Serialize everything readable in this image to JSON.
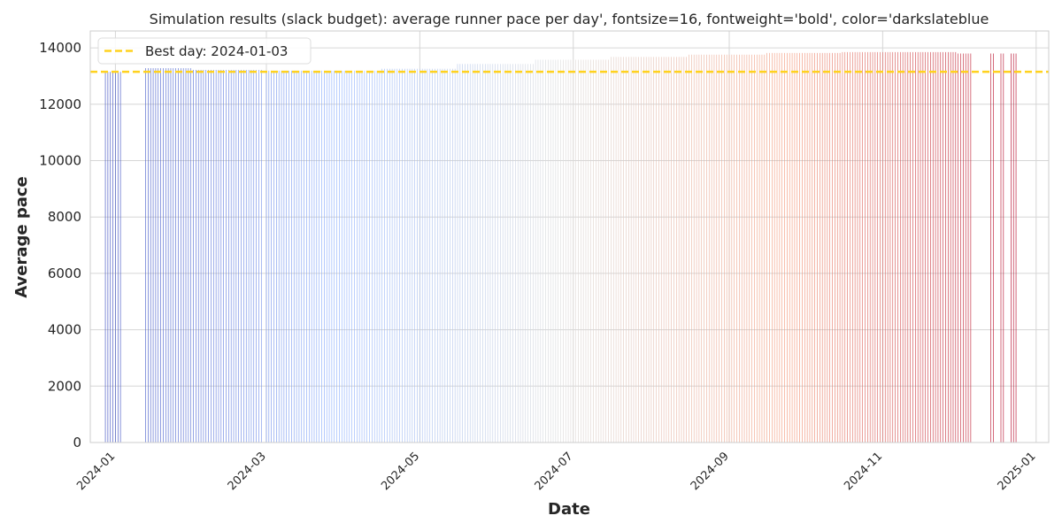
{
  "chart_data": {
    "type": "bar",
    "title": "Simulation results (slack budget): average runner pace per day', fontsize=16, fontweight='bold', color='darkslateblue",
    "xlabel": "Date",
    "ylabel": "Average pace",
    "ylim": [
      0,
      14600
    ],
    "xlim": [
      "2023-12-22",
      "2025-01-06"
    ],
    "yticks": [
      0,
      2000,
      4000,
      6000,
      8000,
      10000,
      12000,
      14000
    ],
    "xticks": [
      "2024-01",
      "2024-03",
      "2024-05",
      "2024-07",
      "2024-09",
      "2024-11",
      "2025-01"
    ],
    "grid": true,
    "legend_position": "top-left",
    "colormap": "coolwarm (blue for early dates to red for late dates)",
    "reference_line": {
      "label": "Best day: 2024-01-03",
      "value": 13150,
      "color": "#FFD21F",
      "style": "dashed"
    },
    "start_date": "2023-12-28",
    "end_date": "2024-12-24",
    "missing_dates": [
      [
        "2024-01-04",
        "2024-01-12"
      ],
      [
        "2024-12-07",
        "2024-12-13"
      ],
      [
        "2024-12-16",
        "2024-12-17"
      ],
      [
        "2024-12-20",
        "2024-12-21"
      ]
    ],
    "series": [
      {
        "values_by_period": [
          {
            "from": "2023-12-28",
            "to": "2024-01-03",
            "value": 13150
          },
          {
            "from": "2024-01-13",
            "to": "2024-01-31",
            "value": 13280
          },
          {
            "from": "2024-02-01",
            "to": "2024-02-28",
            "value": 13220
          },
          {
            "from": "2024-03-01",
            "to": "2024-04-15",
            "value": 13190
          },
          {
            "from": "2024-04-16",
            "to": "2024-05-15",
            "value": 13260
          },
          {
            "from": "2024-05-16",
            "to": "2024-06-15",
            "value": 13430
          },
          {
            "from": "2024-06-16",
            "to": "2024-07-15",
            "value": 13580
          },
          {
            "from": "2024-07-16",
            "to": "2024-08-15",
            "value": 13680
          },
          {
            "from": "2024-08-16",
            "to": "2024-09-15",
            "value": 13760
          },
          {
            "from": "2024-09-16",
            "to": "2024-10-15",
            "value": 13820
          },
          {
            "from": "2024-10-16",
            "to": "2024-11-30",
            "value": 13850
          },
          {
            "from": "2024-12-01",
            "to": "2024-12-24",
            "value": 13800
          }
        ]
      }
    ]
  }
}
